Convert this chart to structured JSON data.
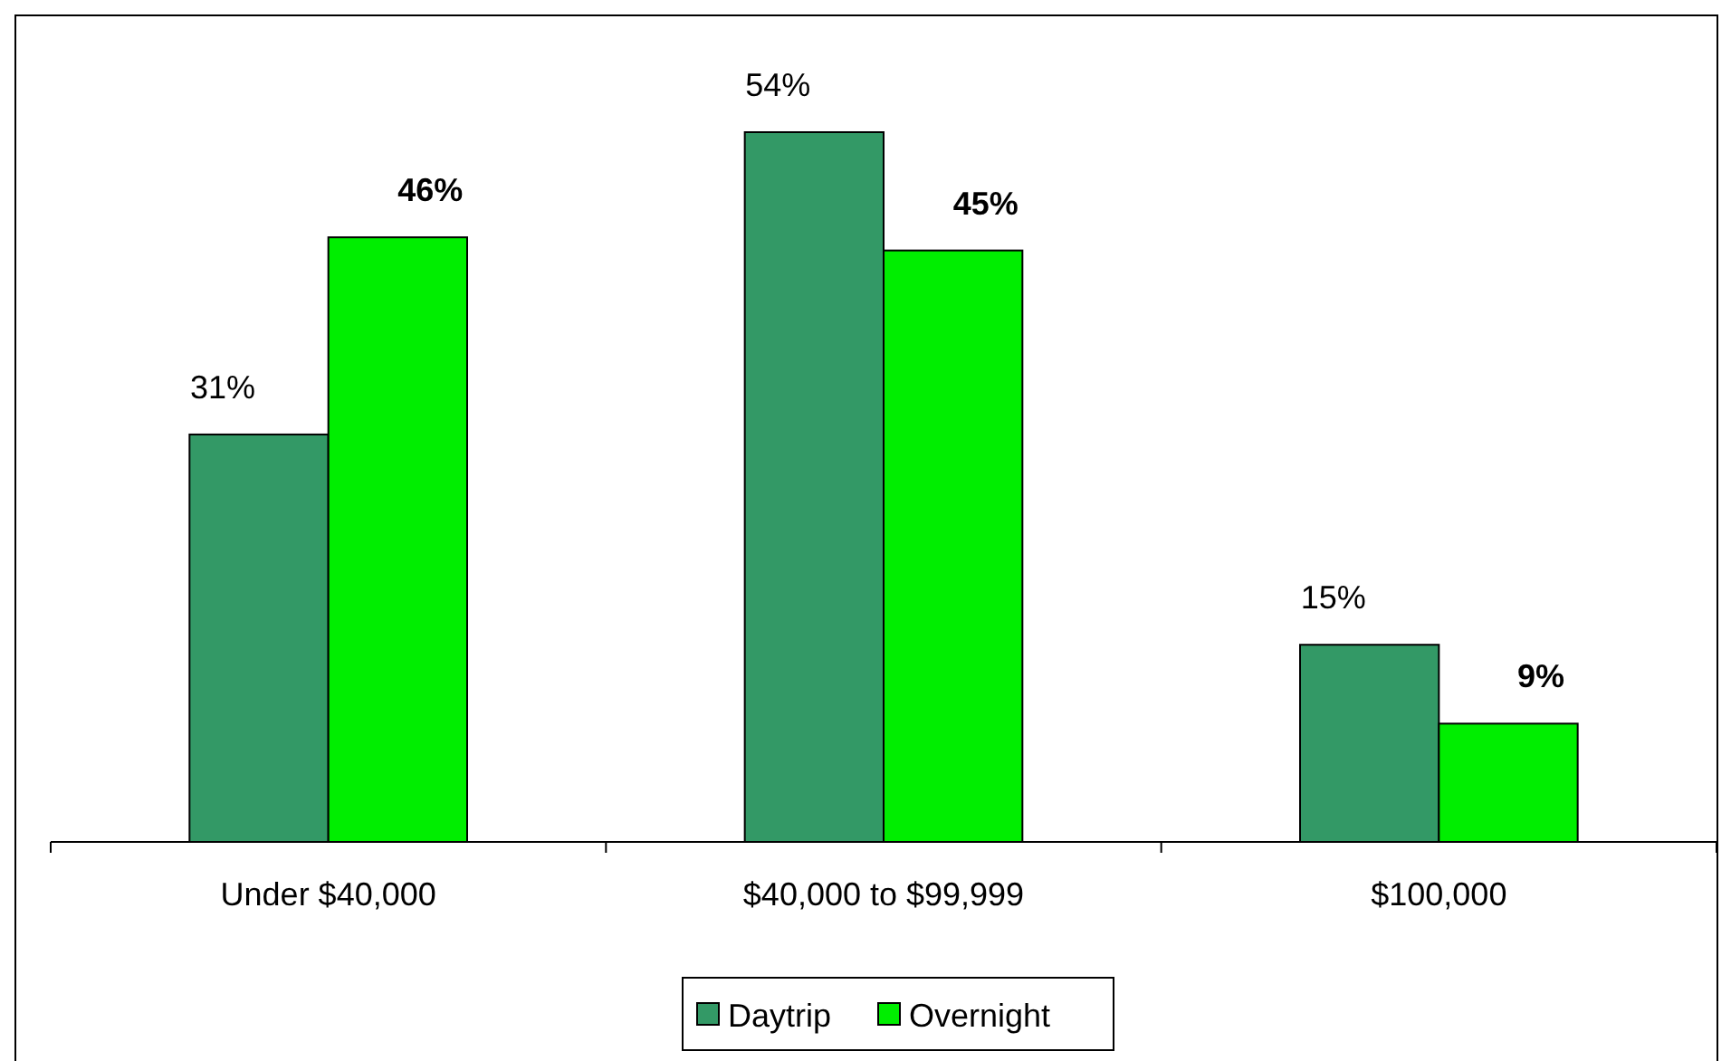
{
  "chart_data": {
    "type": "bar",
    "categories": [
      "Under $40,000",
      "$40,000 to $99,999",
      "$100,000"
    ],
    "series": [
      {
        "name": "Daytrip",
        "color": "#339966",
        "values": [
          31,
          54,
          15
        ],
        "value_labels": [
          "31%",
          "54%",
          "15%"
        ]
      },
      {
        "name": "Overnight",
        "color": "#00ee00",
        "values": [
          46,
          45,
          9
        ],
        "value_labels": [
          "46%",
          "45%",
          "9%"
        ]
      }
    ],
    "legend": "bottom",
    "grid": false
  }
}
